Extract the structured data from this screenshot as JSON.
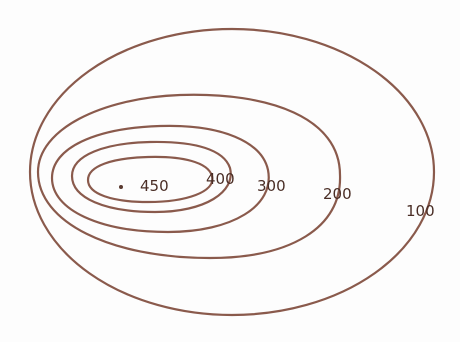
{
  "diagram": {
    "colors": {
      "line": "#8a5a4c",
      "label": "#4a2e26",
      "peak": "#5a3a30",
      "background": "#fdfdfd"
    },
    "peak_symbol": "dot",
    "contours": [
      {
        "level": "100",
        "label": "100"
      },
      {
        "level": "200",
        "label": "200"
      },
      {
        "level": "300",
        "label": "300"
      },
      {
        "level": "400",
        "label": "400"
      },
      {
        "level": "450",
        "label": "450"
      }
    ]
  }
}
